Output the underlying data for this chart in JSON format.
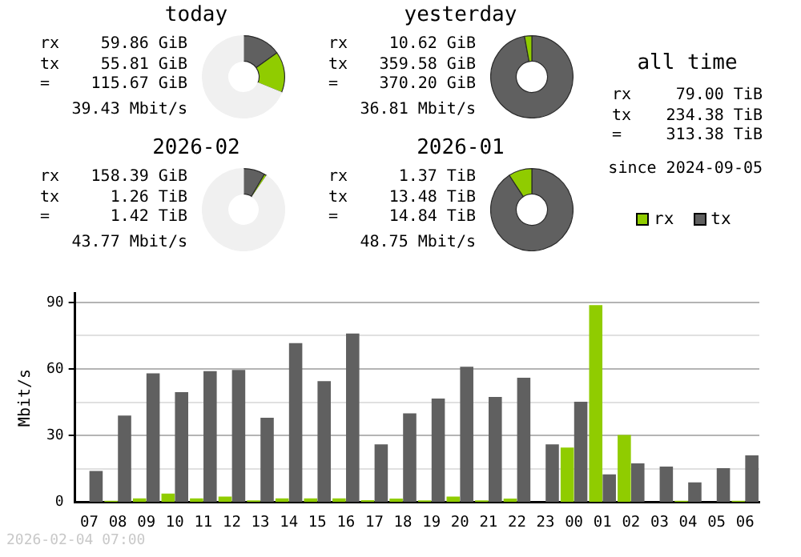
{
  "chart_data": [
    {
      "type": "donut",
      "title": "today",
      "categories": [
        null,
        null,
        null
      ],
      "values": [
        15.08,
        16.17,
        68.75
      ],
      "colors": [
        "#606060",
        "#90cc00",
        "#f0f0f0"
      ],
      "annotations": [
        "rx 59.86 GiB",
        "tx 55.81 GiB",
        "= 115.67 GiB",
        "39.43 Mbit/s"
      ]
    },
    {
      "type": "donut",
      "title": "yesterday",
      "categories": [
        null,
        null,
        null
      ],
      "values": [
        97.13,
        2.87,
        0
      ],
      "colors": [
        "#606060",
        "#90cc00",
        "#f0f0f0"
      ],
      "annotations": [
        "rx 10.62 GiB",
        "tx 359.58 GiB",
        "= 370.20 GiB",
        "36.81 Mbit/s"
      ]
    },
    {
      "type": "donut",
      "title": "2026-02",
      "categories": [
        null,
        null,
        null
      ],
      "values": [
        8.49,
        1.04,
        90.47
      ],
      "colors": [
        "#606060",
        "#90cc00",
        "#f0f0f0"
      ],
      "annotations": [
        "rx 158.39 GiB",
        "tx 1.26 TiB",
        "= 1.42 TiB",
        "43.77 Mbit/s"
      ]
    },
    {
      "type": "donut",
      "title": "2026-01",
      "categories": [
        null,
        null,
        null
      ],
      "values": [
        90.77,
        9.23,
        0
      ],
      "colors": [
        "#606060",
        "#90cc00",
        "#f0f0f0"
      ],
      "annotations": [
        "rx 1.37 TiB",
        "tx 13.48 TiB",
        "= 14.84 TiB",
        "48.75 Mbit/s"
      ]
    },
    {
      "type": "other",
      "title": "all time",
      "annotations": [
        "rx 79.00 TiB",
        "tx 234.38 TiB",
        "= 313.38 TiB",
        "since 2024-09-05"
      ]
    },
    {
      "type": "bar",
      "ylabel": "Mbit/s",
      "categories": [
        "07",
        "08",
        "09",
        "10",
        "11",
        "12",
        "13",
        "14",
        "15",
        "16",
        "17",
        "18",
        "19",
        "20",
        "21",
        "22",
        "23",
        "00",
        "01",
        "02",
        "03",
        "04",
        "05",
        "06"
      ],
      "series": [
        {
          "name": "rx",
          "color": "#90cc00",
          "values": [
            0,
            0.5,
            1.6,
            3.8,
            1.6,
            2.4,
            0.7,
            1.6,
            1.6,
            1.6,
            0.8,
            1.5,
            0.7,
            2.4,
            0.7,
            1.5,
            0,
            24.5,
            88.8,
            30.2,
            0,
            0.5,
            0,
            0.5
          ]
        },
        {
          "name": "tx",
          "color": "#606060",
          "values": [
            14,
            39,
            58,
            49.5,
            59,
            59.5,
            38,
            71.6,
            54.5,
            76,
            26,
            40,
            46.6,
            61,
            47.4,
            56,
            26,
            45.2,
            12.4,
            17.4,
            16,
            8.8,
            15.2,
            21
          ]
        }
      ],
      "ylim": [
        0,
        94
      ],
      "yticks": [
        0,
        {
          "value": 15,
          "label": null
        },
        30,
        {
          "value": 45,
          "label": null
        },
        60,
        {
          "value": 75,
          "label": null
        },
        90
      ],
      "grid": "y",
      "legend": "top right",
      "annotations": [
        "2026-02-04 07:00"
      ]
    }
  ]
}
